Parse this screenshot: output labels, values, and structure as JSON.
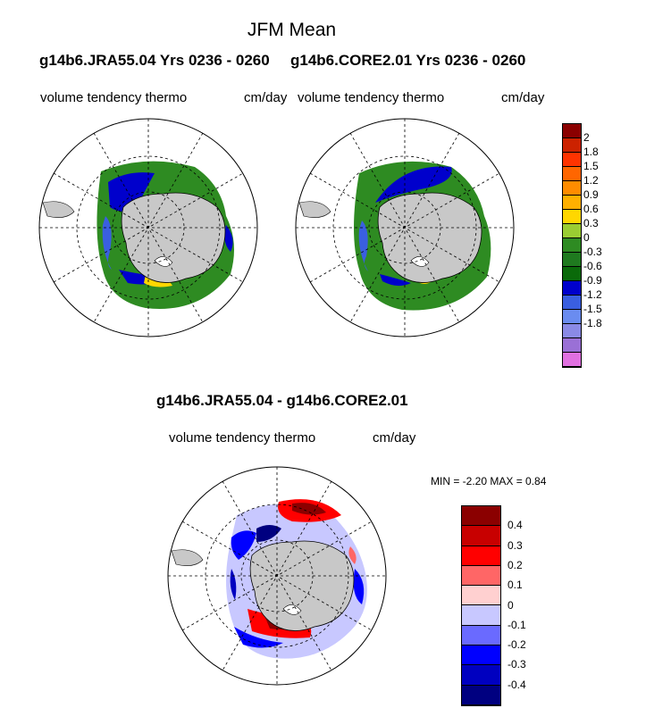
{
  "title": "JFM Mean",
  "panel_left": {
    "case_title": "g14b6.JRA55.04  Yrs 0236 - 0260",
    "field": "volume tendency thermo",
    "units": "cm/day"
  },
  "panel_right": {
    "case_title": "g14b6.CORE2.01  Yrs 0236 - 0260",
    "field": "volume tendency thermo",
    "units": "cm/day"
  },
  "panel_diff": {
    "case_title": "g14b6.JRA55.04 - g14b6.CORE2.01",
    "field": "volume tendency thermo",
    "units": "cm/day",
    "minmax": "MIN =  -2.20 MAX =   0.84"
  },
  "colorbar_top": {
    "labels": [
      "2",
      "1.8",
      "1.5",
      "1.2",
      "0.9",
      "0.6",
      "0.3",
      "0",
      "-0.3",
      "-0.6",
      "-0.9",
      "-1.2",
      "-1.5",
      "-1.8"
    ],
    "colors": [
      "#8b0000",
      "#cc2200",
      "#ff3300",
      "#ff6600",
      "#ff8c00",
      "#ffb000",
      "#ffd700",
      "#9acd32",
      "#2e8b22",
      "#1f7a1f",
      "#0a6a0a",
      "#0000cc",
      "#3a5fe0",
      "#6a8cf0",
      "#8a8ae6",
      "#9a70d6",
      "#e070e0"
    ]
  },
  "colorbar_diff": {
    "labels": [
      "0.4",
      "0.3",
      "0.2",
      "0.1",
      "0",
      "-0.1",
      "-0.2",
      "-0.3",
      "-0.4"
    ],
    "colors": [
      "#8b0000",
      "#c80000",
      "#ff0000",
      "#ff6666",
      "#ffd0d0",
      "#c8c8ff",
      "#6a6aff",
      "#0000ff",
      "#0000c0",
      "#000080"
    ]
  }
}
